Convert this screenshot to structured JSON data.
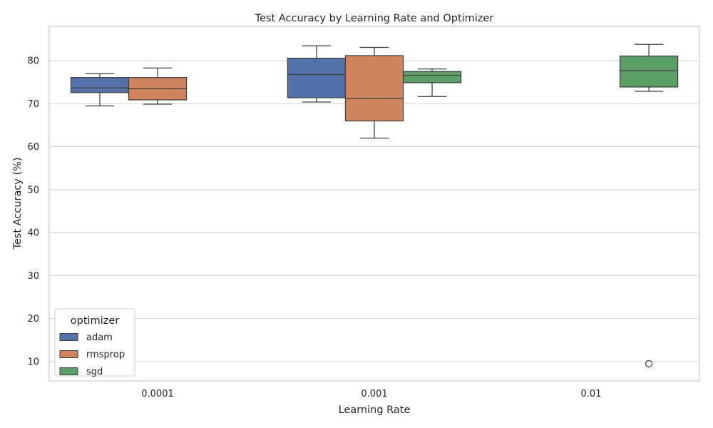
{
  "chart_data": {
    "type": "box",
    "title": "Test Accuracy by Learning Rate and Optimizer",
    "xlabel": "Learning Rate",
    "ylabel": "Test Accuracy (%)",
    "categories": [
      "0.0001",
      "0.001",
      "0.01"
    ],
    "ylim": [
      5.5,
      88
    ],
    "yticks": [
      10,
      20,
      30,
      40,
      50,
      60,
      70,
      80
    ],
    "grid": "horizontal",
    "legend": {
      "title": "optimizer",
      "placement": "lower-left"
    },
    "series": [
      {
        "name": "adam",
        "color": "#5471a9",
        "boxes": [
          {
            "category": "0.0001",
            "min": 69.5,
            "q1": 72.6,
            "median": 73.7,
            "q3": 76.1,
            "max": 77.0,
            "outliers": []
          },
          {
            "category": "0.001",
            "min": 70.4,
            "q1": 71.4,
            "median": 76.8,
            "q3": 80.6,
            "max": 83.5,
            "outliers": []
          }
        ]
      },
      {
        "name": "rmsprop",
        "color": "#d0845d",
        "boxes": [
          {
            "category": "0.0001",
            "min": 69.9,
            "q1": 70.9,
            "median": 73.5,
            "q3": 76.1,
            "max": 78.3,
            "outliers": []
          },
          {
            "category": "0.001",
            "min": 62.0,
            "q1": 66.0,
            "median": 71.2,
            "q3": 81.2,
            "max": 83.1,
            "outliers": []
          }
        ]
      },
      {
        "name": "sgd",
        "color": "#5b9e67",
        "boxes": [
          {
            "category": "0.001",
            "min": 71.7,
            "q1": 74.9,
            "median": 76.6,
            "q3": 77.5,
            "max": 78.1,
            "outliers": []
          },
          {
            "category": "0.01",
            "min": 72.9,
            "q1": 73.9,
            "median": 77.7,
            "q3": 81.1,
            "max": 83.8,
            "outliers": [
              9.5
            ]
          }
        ]
      }
    ]
  }
}
